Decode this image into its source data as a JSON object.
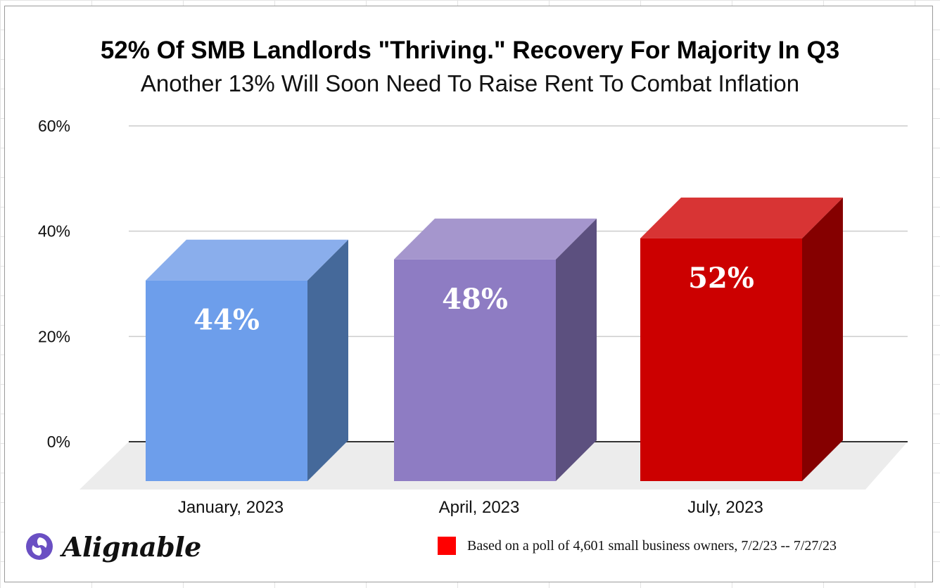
{
  "chart_data": {
    "type": "bar",
    "title": "52% Of SMB Landlords \"Thriving.\" Recovery For Majority In Q3",
    "subtitle": "Another 13% Will Soon Need To Raise Rent To Combat Inflation",
    "categories": [
      "January, 2023",
      "April, 2023",
      "July, 2023"
    ],
    "values": [
      44,
      48,
      52
    ],
    "data_labels": [
      "44%",
      "48%",
      "52%"
    ],
    "ylim": [
      0,
      60
    ],
    "yticks": [
      0,
      20,
      40,
      60
    ],
    "ytick_labels": [
      "0%",
      "20%",
      "40%",
      "60%"
    ],
    "grid": true,
    "colors": {
      "front": [
        "#6d9eeb",
        "#8e7cc3",
        "#cc0000"
      ],
      "top": [
        "#8aaeec",
        "#a596cd",
        "#d83434"
      ],
      "side": [
        "#45699a",
        "#5c507f",
        "#850000"
      ]
    }
  },
  "footnote": {
    "text": "Based on a poll of 4,601 small business owners, 7/2/23 -- 7/27/23",
    "color": "#ff0000"
  },
  "brand": {
    "name": "Alignable",
    "icon": "alignable-logo-icon",
    "color": "#6a4fc3"
  }
}
